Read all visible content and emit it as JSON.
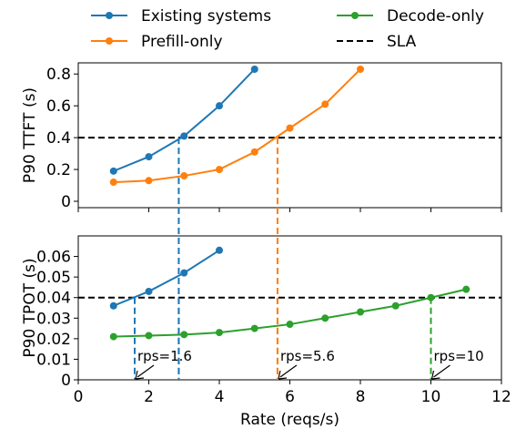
{
  "chart_data": [
    {
      "id": "ttft",
      "type": "line",
      "title": "",
      "xlabel": "",
      "ylabel": "P90 TTFT (s)",
      "xlim": [
        0,
        12
      ],
      "ylim": [
        -0.04,
        0.87
      ],
      "yticks": [
        0,
        0.2,
        0.4,
        0.6,
        0.8
      ],
      "ytick_labels": [
        "0",
        "0.2",
        "0.4",
        "0.6",
        "0.8"
      ],
      "series": [
        {
          "name": "Existing systems",
          "color": "#1f77b4",
          "x": [
            1,
            2,
            3,
            4,
            5
          ],
          "y": [
            0.19,
            0.28,
            0.41,
            0.6,
            0.83
          ]
        },
        {
          "name": "Prefill-only",
          "color": "#ff7f0e",
          "x": [
            1,
            2,
            3,
            4,
            5,
            6,
            7,
            8
          ],
          "y": [
            0.12,
            0.13,
            0.16,
            0.2,
            0.31,
            0.46,
            0.61,
            0.83
          ]
        }
      ],
      "sla": 0.4,
      "crossings": [
        {
          "x": 2.85,
          "color": "#1f77b4"
        },
        {
          "x": 5.65,
          "color": "#ff7f0e"
        }
      ]
    },
    {
      "id": "tpot",
      "type": "line",
      "title": "",
      "xlabel": "Rate (reqs/s)",
      "ylabel": "P90 TPOT (s)",
      "xlim": [
        0,
        12
      ],
      "ylim": [
        0,
        0.07
      ],
      "xticks": [
        0,
        2,
        4,
        6,
        8,
        10,
        12
      ],
      "xtick_labels": [
        "0",
        "2",
        "4",
        "6",
        "8",
        "10",
        "12"
      ],
      "yticks": [
        0,
        0.01,
        0.02,
        0.03,
        0.04,
        0.05,
        0.06
      ],
      "ytick_labels": [
        "0",
        "0.01",
        "0.02",
        "0.03",
        "0.04",
        "0.05",
        "0.06"
      ],
      "series": [
        {
          "name": "Existing systems",
          "color": "#1f77b4",
          "x": [
            1,
            2,
            3,
            4
          ],
          "y": [
            0.036,
            0.043,
            0.052,
            0.063
          ]
        },
        {
          "name": "Decode-only",
          "color": "#2ca02c",
          "x": [
            1,
            2,
            3,
            4,
            5,
            6,
            7,
            8,
            9,
            10,
            11
          ],
          "y": [
            0.021,
            0.0215,
            0.022,
            0.023,
            0.025,
            0.027,
            0.03,
            0.033,
            0.036,
            0.04,
            0.044
          ]
        }
      ],
      "sla": 0.04,
      "crossings": [
        {
          "x": 1.6,
          "color": "#1f77b4"
        },
        {
          "x": 2.85,
          "color": "#1f77b4"
        },
        {
          "x": 5.65,
          "color": "#ff7f0e"
        },
        {
          "x": 10.0,
          "color": "#2ca02c"
        }
      ],
      "annotations": [
        {
          "text": "rps=1.6",
          "x": 1.6,
          "color": "#000000"
        },
        {
          "text": "rps=5.6",
          "x": 5.65,
          "color": "#000000"
        },
        {
          "text": "rps=10",
          "x": 10.0,
          "color": "#000000"
        }
      ]
    }
  ],
  "legend": {
    "placement": "top",
    "entries": [
      {
        "label": "Existing systems",
        "color": "#1f77b4",
        "style": "line-marker"
      },
      {
        "label": "Decode-only",
        "color": "#2ca02c",
        "style": "line-marker"
      },
      {
        "label": "Prefill-only",
        "color": "#ff7f0e",
        "style": "line-marker"
      },
      {
        "label": "SLA",
        "color": "#000000",
        "style": "dashed"
      }
    ]
  }
}
